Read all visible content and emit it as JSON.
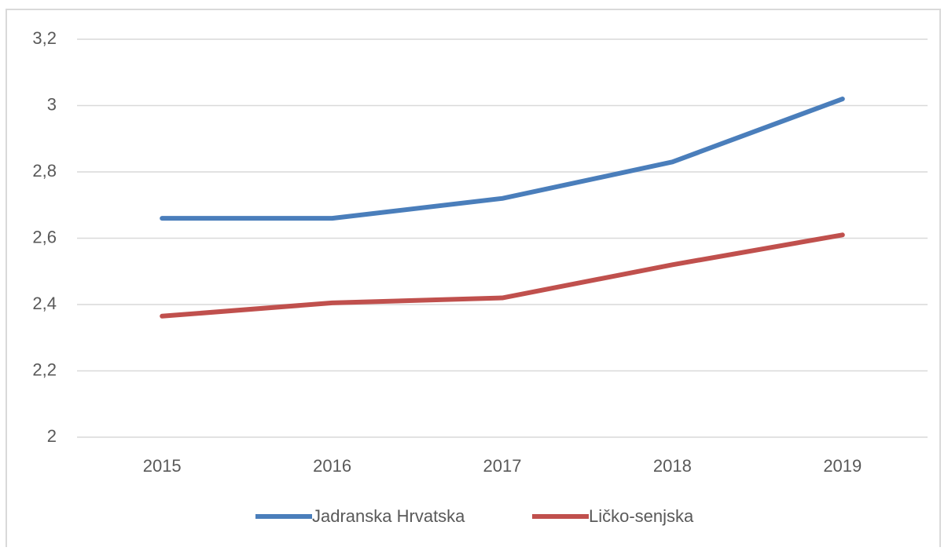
{
  "chart_data": {
    "type": "line",
    "categories": [
      "2015",
      "2016",
      "2017",
      "2018",
      "2019"
    ],
    "series": [
      {
        "name": "Jadranska Hrvatska",
        "color": "#4a7ebb",
        "values": [
          2.66,
          2.66,
          2.72,
          2.83,
          3.02
        ]
      },
      {
        "name": "Ličko-senjska",
        "color": "#c0504d",
        "values": [
          2.365,
          2.405,
          2.42,
          2.52,
          2.61
        ]
      }
    ],
    "ylim": [
      2,
      3.2
    ],
    "yticks": [
      2,
      {
        "value": 2.2,
        "label": "2,2"
      },
      {
        "value": 2.4,
        "label": "2,4"
      },
      {
        "value": 2.6,
        "label": "2,6"
      },
      {
        "value": 2.8,
        "label": "2,8"
      },
      3,
      {
        "value": 3.2,
        "label": "3,2"
      }
    ],
    "grid": true,
    "legend": "bottom"
  }
}
